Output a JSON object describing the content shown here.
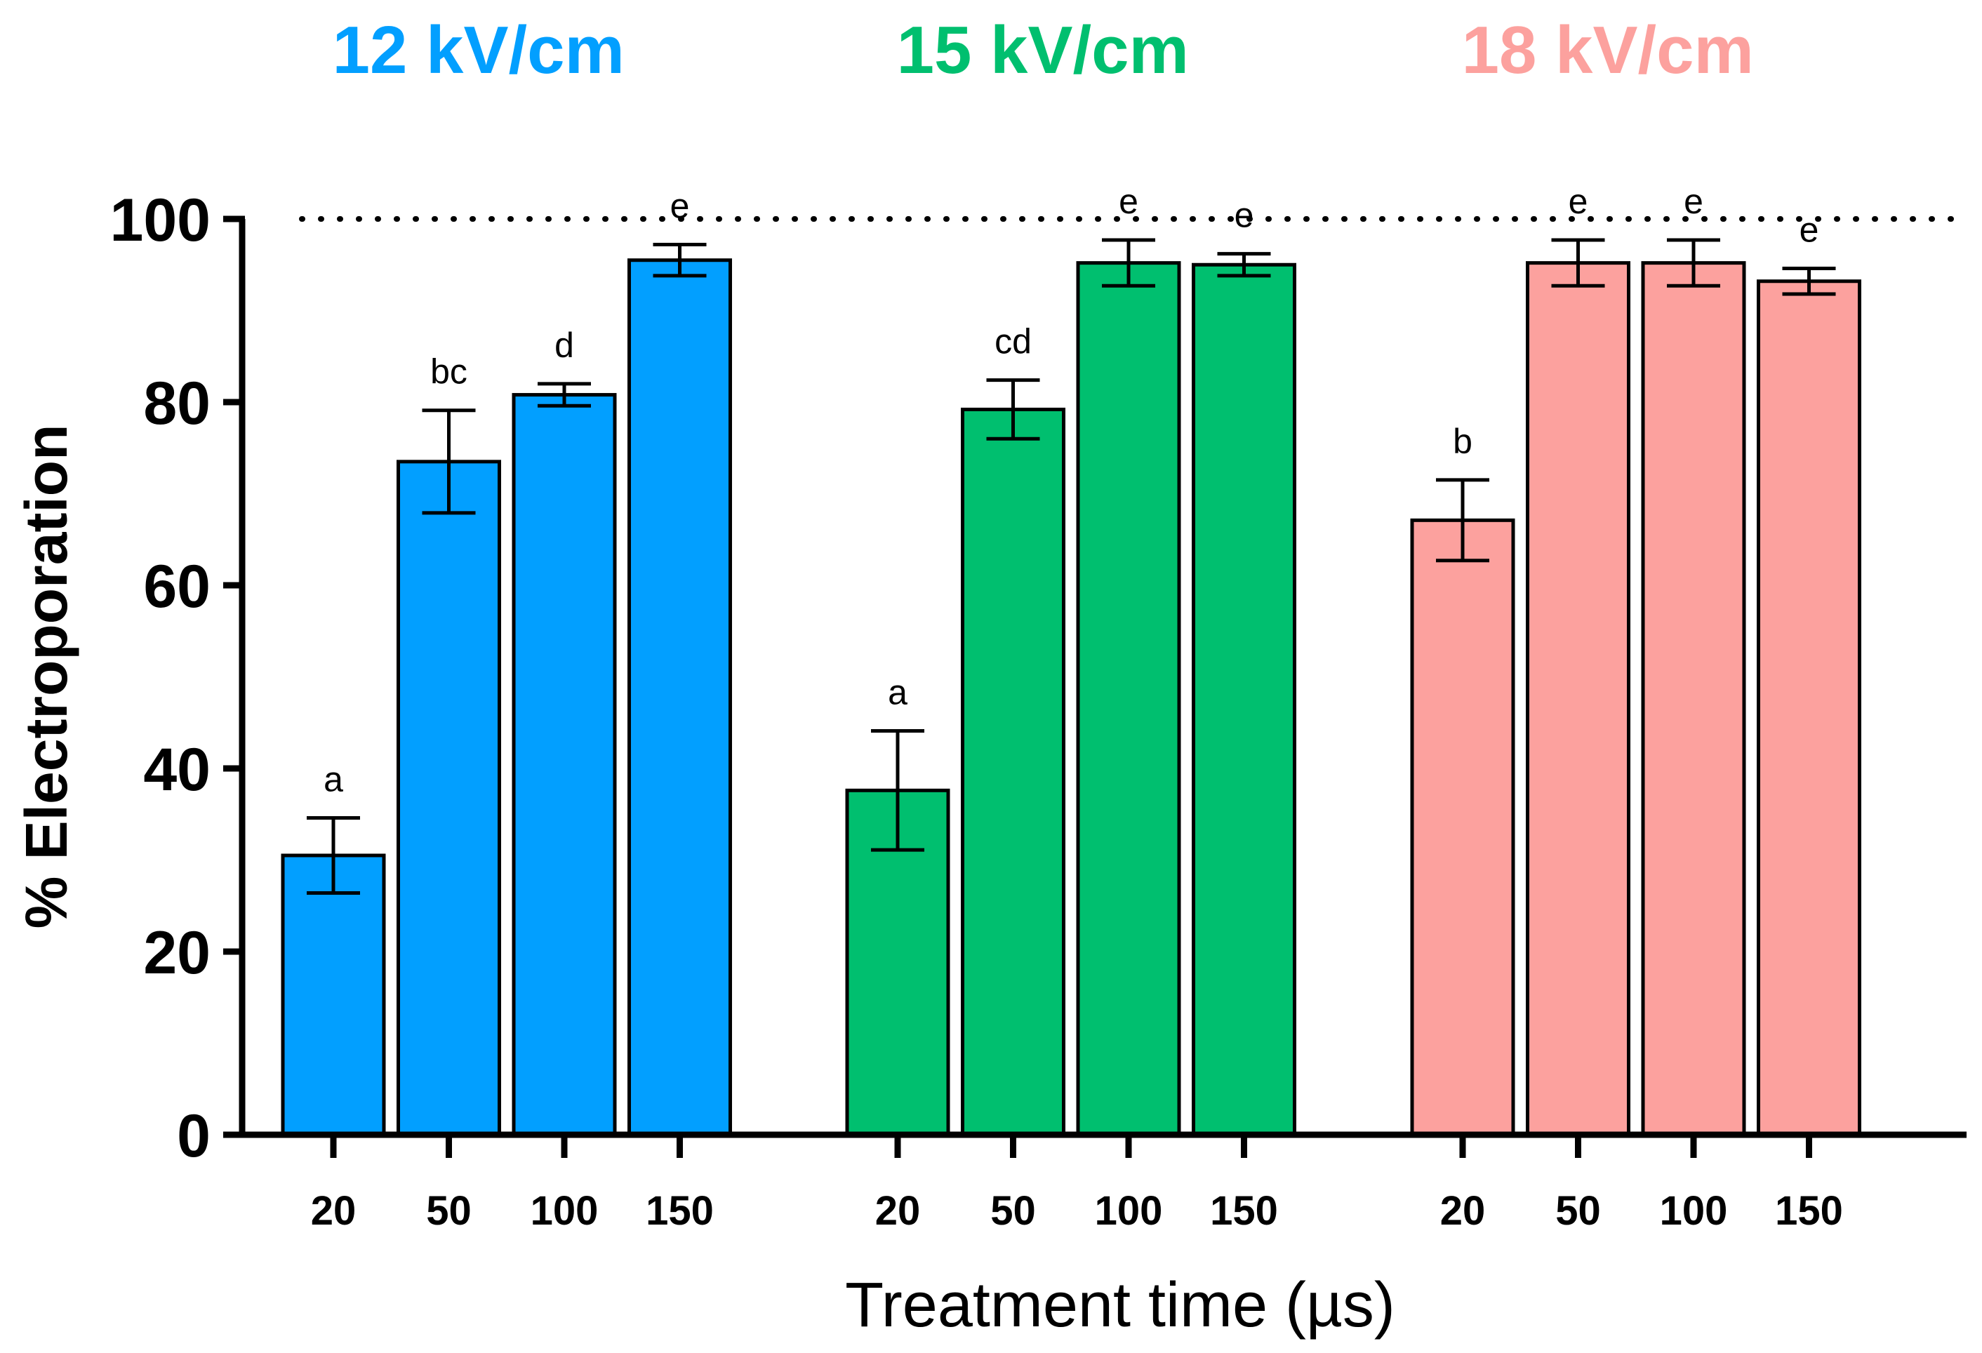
{
  "chart_data": {
    "type": "bar",
    "title": "",
    "xlabel": "Treatment time (µs)",
    "ylabel": "% Electroporation",
    "ylim": [
      0,
      100
    ],
    "yticks": [
      0,
      20,
      40,
      60,
      80,
      100
    ],
    "reference_line": {
      "y": 100,
      "style": "dotted"
    },
    "legend": "none",
    "grid": false,
    "groups": [
      {
        "name": "12 kV/cm",
        "color": "#029FFF",
        "categories": [
          "20",
          "50",
          "100",
          "150"
        ],
        "values": [
          30.5,
          73.5,
          80.8,
          95.5
        ],
        "errors": [
          4.1,
          5.6,
          1.2,
          1.7
        ],
        "significance": [
          "a",
          "bc",
          "d",
          "e"
        ]
      },
      {
        "name": "15 kV/cm",
        "color": "#00BF6F",
        "categories": [
          "20",
          "50",
          "100",
          "150"
        ],
        "values": [
          37.6,
          79.2,
          95.2,
          95.0
        ],
        "errors": [
          6.5,
          3.2,
          2.5,
          1.2
        ],
        "significance": [
          "a",
          "cd",
          "e",
          "e"
        ]
      },
      {
        "name": "18 kV/cm",
        "color": "#FCA19E",
        "categories": [
          "20",
          "50",
          "100",
          "150"
        ],
        "values": [
          67.1,
          95.2,
          95.2,
          93.2
        ],
        "errors": [
          4.4,
          2.5,
          2.5,
          1.4
        ],
        "significance": [
          "b",
          "e",
          "e",
          "e"
        ]
      }
    ]
  }
}
